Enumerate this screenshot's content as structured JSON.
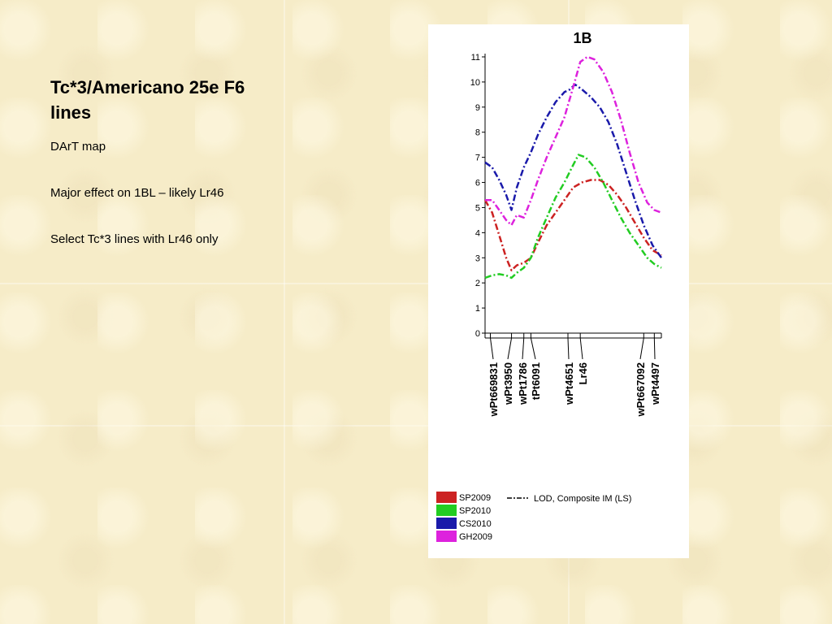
{
  "slide": {
    "title": "Tc*3/Americano 25e F6 lines",
    "bullets": [
      "DArT map",
      "Major effect on 1BL – likely Lr46",
      "Select Tc*3 lines with Lr46 only"
    ]
  },
  "chart_data": {
    "type": "line",
    "title": "1B",
    "xlabel": "",
    "ylabel": "",
    "ylim": [
      0,
      11
    ],
    "yticks": [
      0,
      1,
      2,
      3,
      4,
      5,
      6,
      7,
      8,
      9,
      10,
      11
    ],
    "xlim": [
      0,
      100
    ],
    "markers": [
      {
        "label": "wPt669831",
        "pos": 3
      },
      {
        "label": "wPt3950",
        "pos": 15
      },
      {
        "label": "wPt1786",
        "pos": 22
      },
      {
        "label": "tPt6091",
        "pos": 26
      },
      {
        "label": "wPt4651",
        "pos": 47
      },
      {
        "label": "Lr46",
        "pos": 54
      },
      {
        "label": "wPt667092",
        "pos": 90
      },
      {
        "label": "wPt4497",
        "pos": 96
      }
    ],
    "line_style_label": "LOD, Composite IM (LS)",
    "series": [
      {
        "name": "SP2009",
        "color": "#cc2222",
        "x": [
          0,
          4,
          8,
          12,
          15,
          18,
          22,
          26,
          30,
          35,
          40,
          45,
          50,
          55,
          60,
          65,
          70,
          75,
          80,
          85,
          90,
          95,
          100
        ],
        "y": [
          5.3,
          4.8,
          3.9,
          3.0,
          2.5,
          2.7,
          2.8,
          3.0,
          3.6,
          4.3,
          4.8,
          5.3,
          5.8,
          6.0,
          6.1,
          6.1,
          5.9,
          5.5,
          5.0,
          4.4,
          3.8,
          3.3,
          3.1
        ]
      },
      {
        "name": "SP2010",
        "color": "#22cc22",
        "x": [
          0,
          4,
          8,
          12,
          15,
          18,
          22,
          26,
          30,
          35,
          40,
          45,
          50,
          53,
          57,
          62,
          67,
          72,
          77,
          82,
          87,
          92,
          96,
          100
        ],
        "y": [
          2.2,
          2.3,
          2.35,
          2.3,
          2.2,
          2.4,
          2.6,
          3.0,
          3.8,
          4.6,
          5.4,
          6.0,
          6.7,
          7.1,
          7.0,
          6.6,
          6.0,
          5.3,
          4.6,
          4.0,
          3.5,
          3.0,
          2.75,
          2.6
        ]
      },
      {
        "name": "CS2010",
        "color": "#1a1aaa",
        "x": [
          0,
          4,
          8,
          12,
          15,
          18,
          22,
          26,
          30,
          35,
          40,
          45,
          48,
          51,
          55,
          60,
          65,
          70,
          75,
          80,
          85,
          90,
          95,
          100
        ],
        "y": [
          6.8,
          6.6,
          6.1,
          5.5,
          4.9,
          5.8,
          6.6,
          7.2,
          7.9,
          8.6,
          9.2,
          9.6,
          9.7,
          9.9,
          9.7,
          9.4,
          9.0,
          8.4,
          7.5,
          6.4,
          5.3,
          4.3,
          3.5,
          3.0
        ]
      },
      {
        "name": "GH2009",
        "color": "#dd22dd",
        "x": [
          0,
          4,
          8,
          12,
          15,
          18,
          22,
          26,
          30,
          35,
          40,
          45,
          50,
          54,
          58,
          62,
          67,
          72,
          77,
          82,
          87,
          92,
          96,
          100
        ],
        "y": [
          5.3,
          5.3,
          4.9,
          4.5,
          4.3,
          4.7,
          4.6,
          5.3,
          6.1,
          7.0,
          7.8,
          8.6,
          9.8,
          10.8,
          11.0,
          10.9,
          10.4,
          9.6,
          8.5,
          7.2,
          6.0,
          5.2,
          4.9,
          4.8
        ]
      }
    ]
  }
}
